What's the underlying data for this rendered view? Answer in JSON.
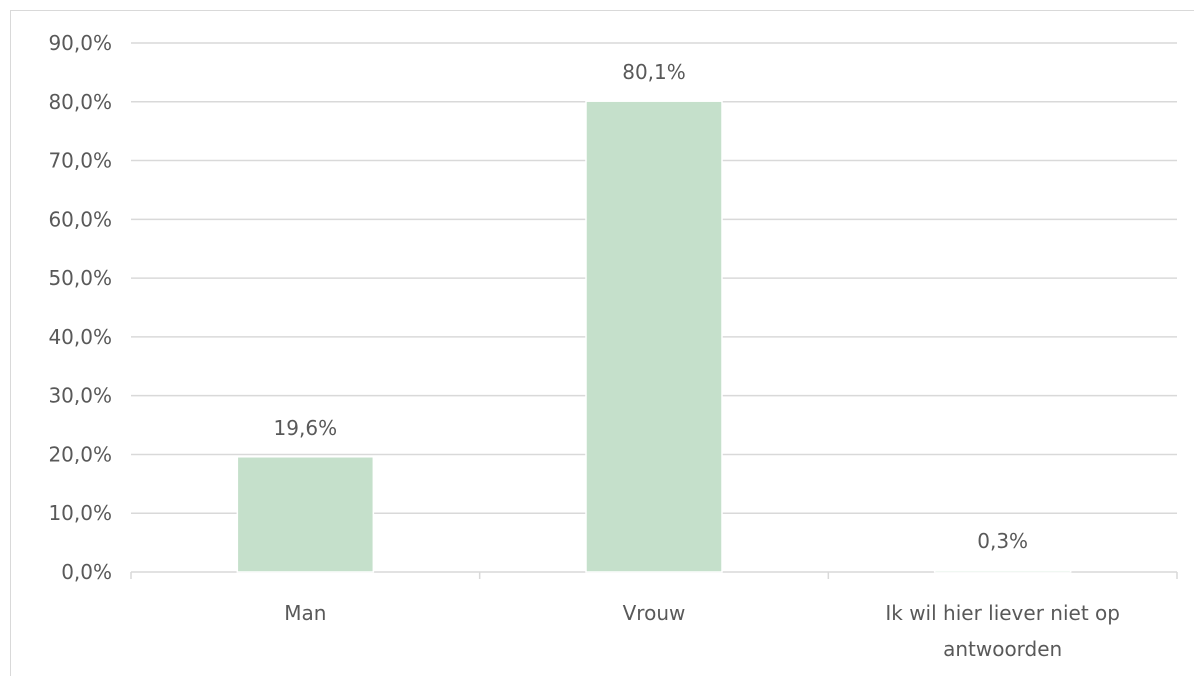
{
  "chart_data": {
    "type": "bar",
    "categories": [
      "Man",
      "Vrouw",
      "Ik wil hier liever niet op antwoorden"
    ],
    "category_lines": [
      [
        "Man"
      ],
      [
        "Vrouw"
      ],
      [
        "Ik wil hier liever niet op",
        "antwoorden"
      ]
    ],
    "values": [
      19.6,
      80.1,
      0.3
    ],
    "data_labels": [
      "19,6%",
      "80,1%",
      "0,3%"
    ],
    "y_ticks": [
      0,
      10,
      20,
      30,
      40,
      50,
      60,
      70,
      80,
      90
    ],
    "y_tick_labels": [
      "0,0%",
      "10,0%",
      "20,0%",
      "30,0%",
      "40,0%",
      "50,0%",
      "60,0%",
      "70,0%",
      "80,0%",
      "90,0%"
    ],
    "ylim": [
      0,
      90
    ],
    "title": "",
    "xlabel": "",
    "ylabel": "",
    "grid": true,
    "legend": "none",
    "colors": {
      "bar": "#c5e0cb",
      "grid": "#d9d9d9",
      "text": "#595959",
      "frame": "#d9d9d9"
    }
  }
}
